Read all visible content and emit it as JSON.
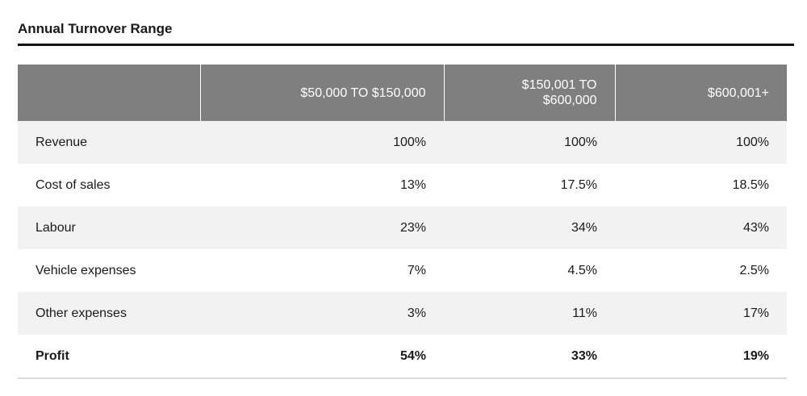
{
  "title": "Annual Turnover Range",
  "table": {
    "headers": [
      "",
      "$50,000 TO $150,000",
      "$150,001 TO $600,000",
      "$600,001+"
    ],
    "header_lines": {
      "col2": [
        "$150,001 TO",
        "$600,000"
      ]
    },
    "rows": [
      {
        "label": "Revenue",
        "values": [
          "100%",
          "100%",
          "100%"
        ]
      },
      {
        "label": "Cost of sales",
        "values": [
          "13%",
          "17.5%",
          "18.5%"
        ]
      },
      {
        "label": "Labour",
        "values": [
          "23%",
          "34%",
          "43%"
        ]
      },
      {
        "label": "Vehicle expenses",
        "values": [
          "7%",
          "4.5%",
          "2.5%"
        ]
      },
      {
        "label": "Other expenses",
        "values": [
          "3%",
          "11%",
          "17%"
        ]
      },
      {
        "label": "Profit",
        "values": [
          "54%",
          "33%",
          "19%"
        ]
      }
    ]
  },
  "colors": {
    "header_bg": "#7f7f7f",
    "row_shade": "#f2f2f2",
    "title_rule": "#111111"
  }
}
